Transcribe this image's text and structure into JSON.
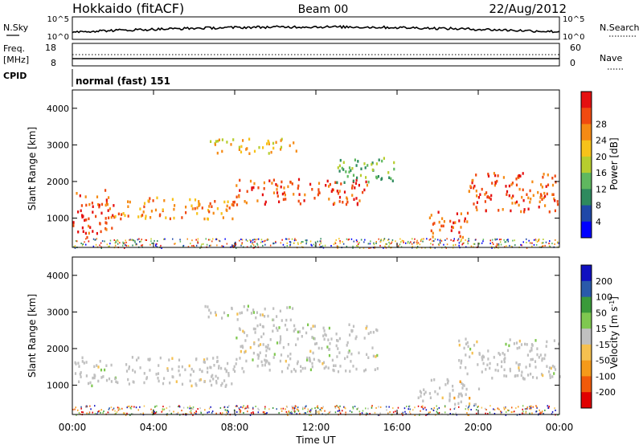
{
  "header": {
    "station": "Hokkaido (fitACF)",
    "beam": "Beam 00",
    "date": "22/Aug/2012"
  },
  "noise_panel": {
    "left_label": "N.Sky",
    "right_label": "N.Search",
    "tick_top": "10^5",
    "tick_bottom": "10^0"
  },
  "freq_panel": {
    "left_label_line1": "Freq.",
    "left_label_line2": "[MHz]",
    "right_label": "Nave",
    "left_ticks": [
      "18",
      "8"
    ],
    "right_ticks": [
      "60",
      "0"
    ]
  },
  "cpid_panel": {
    "label": "CPID",
    "value": "normal (fast) 151"
  },
  "colors": {
    "power": [
      "#0000ff",
      "#1f48a8",
      "#2e8a5e",
      "#5fb85f",
      "#b7cd2e",
      "#f7c21a",
      "#f58a14",
      "#f04a10",
      "#e51010"
    ],
    "velocity": [
      "#e00000",
      "#f05a0a",
      "#f59a1a",
      "#f5c050",
      "#c0c0c0",
      "#7fc850",
      "#3a9a3a",
      "#2a5aaa",
      "#1010c0"
    ]
  },
  "chart_data": [
    {
      "type": "heatmap",
      "quantity": "power",
      "ylabel": "Slant Range [km]",
      "ylim": [
        200,
        4500
      ],
      "yticks": [
        1000,
        2000,
        3000,
        4000
      ],
      "colorbar_label": "Power [dB]",
      "colorbar_ticks": [
        "4",
        "8",
        "12",
        "16",
        "20",
        "24",
        "28"
      ],
      "bands": [
        {
          "from_h": 0.0,
          "to_h": 2.0,
          "range_km": [
            500,
            1800
          ],
          "level": 7
        },
        {
          "from_h": 2.0,
          "to_h": 8.0,
          "range_km": [
            1000,
            1600
          ],
          "level": 6
        },
        {
          "from_h": 8.0,
          "to_h": 14.5,
          "range_km": [
            1400,
            2100
          ],
          "level": 7
        },
        {
          "from_h": 13.0,
          "to_h": 16.0,
          "range_km": [
            2000,
            2700
          ],
          "level": 3
        },
        {
          "from_h": 17.5,
          "to_h": 19.5,
          "range_km": [
            500,
            1200
          ],
          "level": 7
        },
        {
          "from_h": 19.5,
          "to_h": 24.0,
          "range_km": [
            1200,
            2300
          ],
          "level": 7
        },
        {
          "from_h": 6.5,
          "to_h": 11.0,
          "range_km": [
            2800,
            3200
          ],
          "level": 5
        }
      ]
    },
    {
      "type": "heatmap",
      "quantity": "velocity",
      "ylabel": "Slant Range [km]",
      "ylim": [
        200,
        4500
      ],
      "yticks": [
        1000,
        2000,
        3000,
        4000
      ],
      "colorbar_label": "Velocity [m s^-1]",
      "colorbar_ticks": [
        "-200",
        "-100",
        "-50",
        "-15",
        "15",
        "50",
        "100",
        "200"
      ],
      "bands": [
        {
          "from_h": 0.0,
          "to_h": 8.0,
          "range_km": [
            1000,
            1800
          ],
          "level": 4
        },
        {
          "from_h": 8.0,
          "to_h": 15.0,
          "range_km": [
            1400,
            2700
          ],
          "level": 4
        },
        {
          "from_h": 19.0,
          "to_h": 24.0,
          "range_km": [
            1200,
            2300
          ],
          "level": 4
        },
        {
          "from_h": 6.5,
          "to_h": 11.0,
          "range_km": [
            2800,
            3200
          ],
          "level": 4
        },
        {
          "from_h": 17.0,
          "to_h": 20.0,
          "range_km": [
            500,
            1200
          ],
          "level": 3
        }
      ]
    }
  ],
  "xaxis": {
    "label": "Time UT",
    "ticks": [
      "00:00",
      "04:00",
      "08:00",
      "12:00",
      "16:00",
      "20:00",
      "00:00"
    ]
  }
}
